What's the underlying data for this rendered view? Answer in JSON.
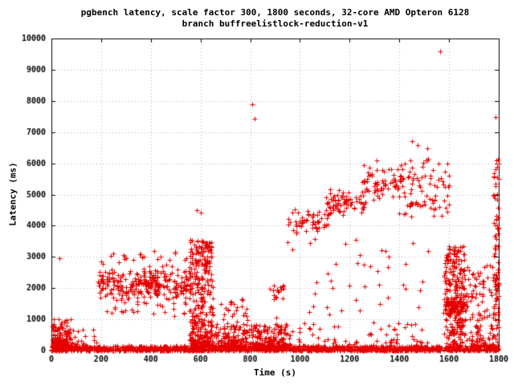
{
  "chart_data": {
    "type": "scatter",
    "title": "pgbench latency, scale factor 300, 1800 seconds, 32-core AMD Opteron 6128",
    "subtitle": "branch buffreelistlock-reduction-v1",
    "xlabel": "Time (s)",
    "ylabel": "Latency (ms)",
    "xlim": [
      0,
      1800
    ],
    "ylim": [
      0,
      10000
    ],
    "xticks": [
      0,
      200,
      400,
      600,
      800,
      1000,
      1200,
      1400,
      1600,
      1800
    ],
    "yticks": [
      0,
      1000,
      2000,
      3000,
      4000,
      5000,
      6000,
      7000,
      8000,
      9000,
      10000
    ],
    "grid": true,
    "legend": "none",
    "marker": "plus",
    "marker_color": "#e60000",
    "grid_color": "#b4b4b4",
    "axis_color": "#000000",
    "seed": 424242,
    "point_clusters": [
      {
        "x": [
          0,
          1800
        ],
        "y": [
          10,
          150
        ],
        "count": 1500,
        "dist": "low"
      },
      {
        "x": [
          3,
          78
        ],
        "y": [
          120,
          1050
        ],
        "count": 110,
        "dist": "low"
      },
      {
        "x": [
          3,
          60
        ],
        "y": [
          50,
          400
        ],
        "count": 130,
        "dist": "low"
      },
      {
        "x": [
          78,
          185
        ],
        "y": [
          130,
          700
        ],
        "count": 22,
        "dist": "low"
      },
      {
        "x": [
          185,
          560
        ],
        "y": [
          1600,
          2700
        ],
        "count": 270,
        "dist": "center"
      },
      {
        "x": [
          200,
          555
        ],
        "y": [
          2650,
          3200
        ],
        "count": 26,
        "dist": "uniform"
      },
      {
        "x": [
          185,
          560
        ],
        "y": [
          1100,
          1650
        ],
        "count": 30,
        "dist": "uniform"
      },
      {
        "x": [
          555,
          650
        ],
        "y": [
          150,
          3550
        ],
        "count": 210,
        "dist": "uniform"
      },
      {
        "x": [
          560,
          645
        ],
        "y": [
          2700,
          3500
        ],
        "count": 45,
        "dist": "uniform"
      },
      {
        "x": [
          558,
          960
        ],
        "y": [
          140,
          850
        ],
        "count": 400,
        "dist": "low"
      },
      {
        "x": [
          680,
          790
        ],
        "y": [
          850,
          1650
        ],
        "count": 24,
        "dist": "uniform"
      },
      {
        "x": [
          878,
          938
        ],
        "y": [
          1600,
          2120
        ],
        "count": 16,
        "dist": "uniform"
      },
      {
        "x": [
          950,
          1120
        ],
        "y": [
          3700,
          4600
        ],
        "count": 55,
        "dist": "center"
      },
      {
        "x": [
          1100,
          1260
        ],
        "y": [
          4200,
          5300
        ],
        "count": 70,
        "dist": "center"
      },
      {
        "x": [
          1250,
          1420
        ],
        "y": [
          4700,
          6000
        ],
        "count": 75,
        "dist": "center"
      },
      {
        "x": [
          1400,
          1535
        ],
        "y": [
          4300,
          6200
        ],
        "count": 55,
        "dist": "uniform"
      },
      {
        "x": [
          950,
          1535
        ],
        "y": [
          150,
          900
        ],
        "count": 70,
        "dist": "low"
      },
      {
        "x": [
          950,
          1535
        ],
        "y": [
          900,
          3600
        ],
        "count": 40,
        "dist": "uniform"
      },
      {
        "x": [
          1535,
          1600
        ],
        "y": [
          4300,
          6050
        ],
        "count": 28,
        "dist": "uniform"
      },
      {
        "x": [
          1578,
          1665
        ],
        "y": [
          150,
          3350
        ],
        "count": 250,
        "dist": "uniform"
      },
      {
        "x": [
          1585,
          1660
        ],
        "y": [
          1200,
          1750
        ],
        "count": 60,
        "dist": "center"
      },
      {
        "x": [
          1660,
          1800
        ],
        "y": [
          950,
          2750
        ],
        "count": 85,
        "dist": "uniform"
      },
      {
        "x": [
          1660,
          1800
        ],
        "y": [
          140,
          900
        ],
        "count": 70,
        "dist": "low"
      },
      {
        "x": [
          1778,
          1800
        ],
        "y": [
          900,
          6150
        ],
        "count": 60,
        "dist": "uniform"
      }
    ],
    "outliers": [
      [
        33,
        2950
      ],
      [
        250,
        3120
      ],
      [
        585,
        4500
      ],
      [
        602,
        4430
      ],
      [
        808,
        7900
      ],
      [
        818,
        7430
      ],
      [
        905,
        1050
      ],
      [
        1040,
        3450
      ],
      [
        1310,
        6100
      ],
      [
        1452,
        6700
      ],
      [
        1473,
        6590
      ],
      [
        1512,
        6480
      ],
      [
        1565,
        9600
      ],
      [
        1787,
        7480
      ],
      [
        1797,
        6120
      ],
      [
        1800,
        5980
      ]
    ]
  }
}
